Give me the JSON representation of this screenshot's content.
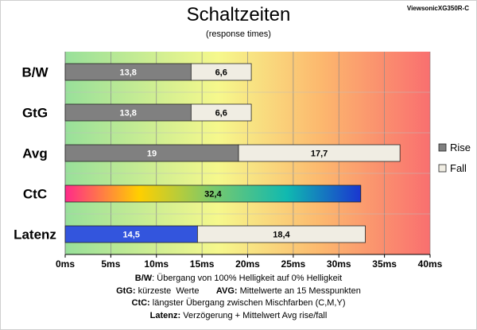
{
  "header": {
    "title": "Schaltzeiten",
    "subtitle": "(response times)",
    "source": "ViewsonicXG350R-C"
  },
  "chart_data": {
    "type": "bar",
    "orientation": "horizontal",
    "stacked": true,
    "title": "Schaltzeiten",
    "subtitle": "(response times)",
    "categories": [
      "B/W",
      "GtG",
      "Avg",
      "CtC",
      "Latenz"
    ],
    "series": [
      {
        "name": "Rise",
        "values": [
          13.8,
          13.8,
          19,
          null,
          null
        ]
      },
      {
        "name": "Fall",
        "values": [
          6.6,
          6.6,
          17.7,
          null,
          18.4
        ]
      }
    ],
    "single_bars": [
      {
        "category": "CtC",
        "value": 32.4,
        "label": "32,4"
      },
      {
        "category": "Latenz",
        "value": 14.5,
        "label": "14,5"
      }
    ],
    "value_labels": {
      "B/W": [
        "13,8",
        "6,6"
      ],
      "GtG": [
        "13,8",
        "6,6"
      ],
      "Avg": [
        "19",
        "17,7"
      ],
      "Latenz": [
        "",
        "18,4"
      ]
    },
    "xlim": [
      0,
      40
    ],
    "xticks": [
      0,
      5,
      10,
      15,
      20,
      25,
      30,
      35,
      40
    ],
    "xtick_labels": [
      "0ms",
      "5ms",
      "10ms",
      "15ms",
      "20ms",
      "25ms",
      "30ms",
      "35ms",
      "40ms"
    ],
    "grid": true,
    "legend": {
      "position": "right",
      "entries": [
        "Rise",
        "Fall"
      ]
    },
    "background_gradient": "green to yellow to red along x-axis"
  },
  "colors": {
    "rise": "#808080",
    "fall": "#f0ede3",
    "latenz": "#3355dd",
    "bg_start": "#98e09a",
    "bg_mid1": "#f6f88c",
    "bg_mid2": "#fcb86e",
    "bg_end": "#f96f6f",
    "ctc_gradient": [
      "#ff2a8a",
      "#ffcf00",
      "#79c96d",
      "#10b9b0",
      "#1a36d0"
    ]
  },
  "notes": [
    {
      "bold": "B/W",
      "text": ":  Übergang von 100% Helligkeit auf 0% Helligkeit"
    },
    {
      "bold": "GtG:",
      "text": " kürzeste  Werte       ",
      "bold2": "AVG:",
      "text2": " Mittelwerte  an 15 Messpunkten"
    },
    {
      "bold": "CtC:",
      "text": " längster Übergang  zwischen Mischfarben  (C,M,Y)"
    },
    {
      "bold": "Latenz:",
      "text": " Verzögerung  + Mittelwert  Avg rise/fall"
    }
  ]
}
